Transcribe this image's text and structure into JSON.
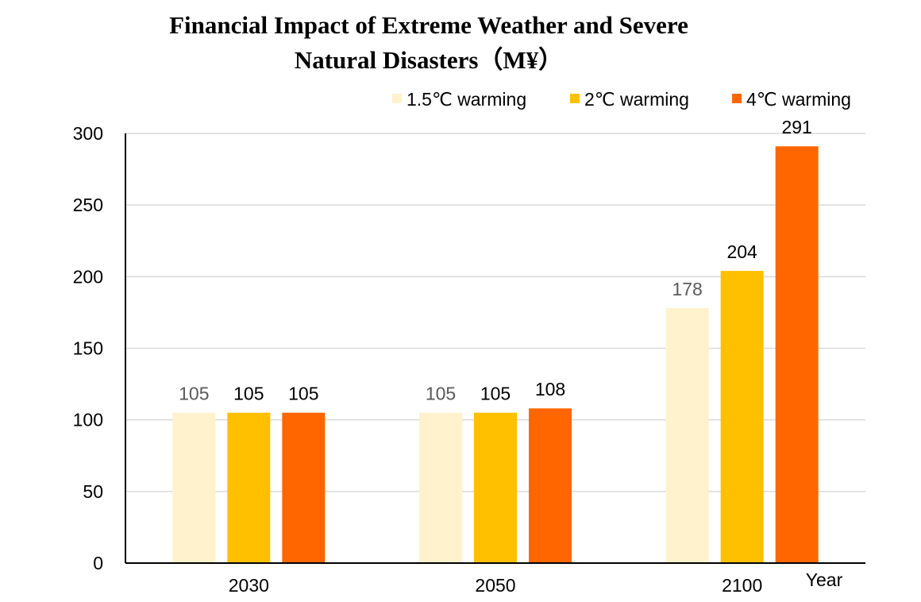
{
  "chart_data": {
    "type": "bar",
    "title_line1": "Financial Impact of Extreme Weather and Severe",
    "title_line2": "Natural Disasters（M¥）",
    "xlabel": "Year",
    "ylabel": "",
    "ylim": [
      0,
      300
    ],
    "yticks": [
      0,
      50,
      100,
      150,
      200,
      250,
      300
    ],
    "grid": true,
    "legend_position": "top-right",
    "categories": [
      "2030",
      "2050",
      "2100"
    ],
    "series": [
      {
        "name": "1.5℃ warming",
        "color": "#FFF2CC",
        "label_color": "#595959",
        "values": [
          105,
          105,
          178
        ]
      },
      {
        "name": "2℃ warming",
        "color": "#FFC000",
        "label_color": "#000000",
        "values": [
          105,
          105,
          204
        ]
      },
      {
        "name": "4℃ warming",
        "color": "#FF6600",
        "label_color": "#000000",
        "values": [
          105,
          108,
          291
        ]
      }
    ]
  }
}
